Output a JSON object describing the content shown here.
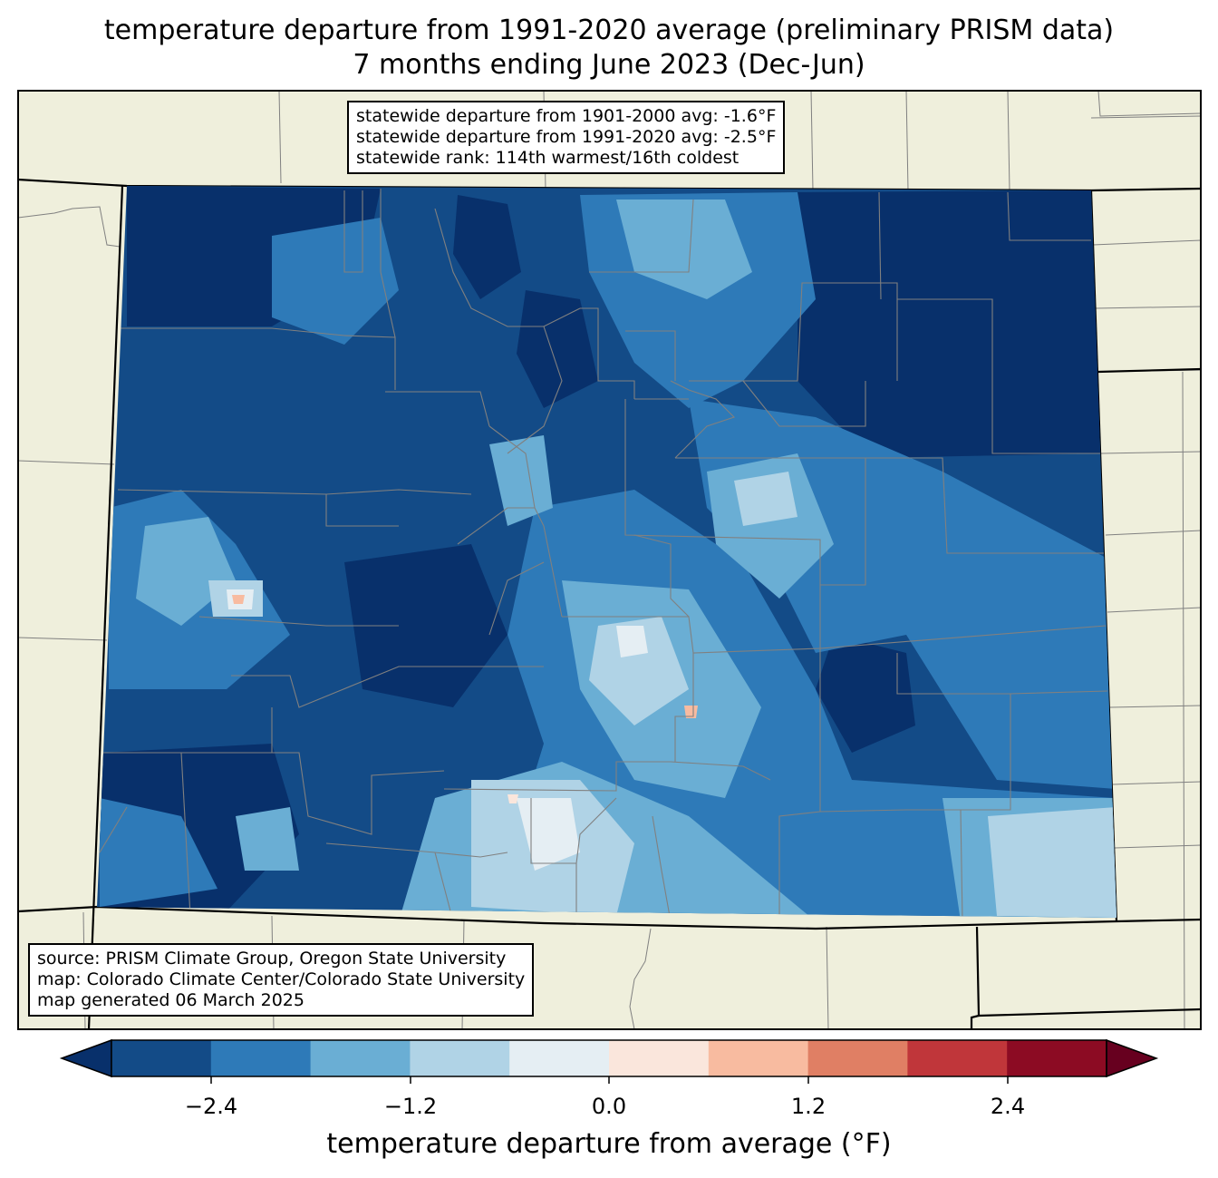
{
  "title": {
    "line1": "temperature departure from 1991-2020 average (preliminary PRISM data)",
    "line2": "7 months ending June 2023 (Dec-Jun)"
  },
  "stats": {
    "line1": "statewide departure from 1901-2000 avg: -1.6°F",
    "line2": "statewide departure from 1991-2020 avg: -2.5°F",
    "line3": "statewide rank: 114th warmest/16th coldest"
  },
  "source": {
    "line1": "source: PRISM Climate Group, Oregon State University",
    "line2": "map: Colorado Climate Center/Colorado State University",
    "line3": "map generated 06 March 2025"
  },
  "colorbar": {
    "label": "temperature departure from average (°F)",
    "ticks": [
      "−2.4",
      "−1.2",
      "0.0",
      "1.2",
      "2.4"
    ],
    "colors": [
      "#08306b",
      "#134b87",
      "#2e7ab8",
      "#6aaed4",
      "#b0d3e6",
      "#e5eef3",
      "#fae6dc",
      "#f8bba0",
      "#e07f64",
      "#c0363a",
      "#8c0b23",
      "#67001f"
    ]
  },
  "colors": {
    "land": "#efefdc",
    "state_fill": "#134b87",
    "county_lines": "#808080"
  }
}
